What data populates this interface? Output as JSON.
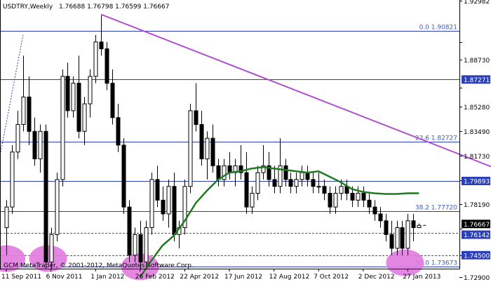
{
  "header": {
    "symbol": "USDTRY,Weekly",
    "ohlc": "1.76688 1.76798 1.76599 1.76667"
  },
  "footer": {
    "copyright": "GCM MetaTrader, © 2001-2012, MetaQuotes Software Corp."
  },
  "colors": {
    "bullish": "#ffffff",
    "bearish": "#000000",
    "level_line": "#2b3fb8",
    "trendline": "#b050d0",
    "moving_average": "#1f7a1f",
    "ellipse": "#e07ae0",
    "badge_bg": "#2b3fb8"
  },
  "chart_data": {
    "type": "candlestick",
    "price_axis": {
      "ylim": [
        1.7255,
        1.9305
      ],
      "ticks": [
        1.92982,
        1.9,
        1.8873,
        1.867,
        1.8528,
        1.8349,
        1.8173,
        1.7996,
        1.7819,
        1.7643,
        1.745,
        1.729
      ],
      "labels": [
        "1.92982",
        "",
        "1.88730",
        "",
        "1.85280",
        "1.83490",
        "1.81730",
        "",
        "1.78190",
        "",
        "",
        "1.72900"
      ]
    },
    "time_axis": {
      "labels": [
        "11 Sep 2011",
        "6 Nov 2011",
        "1 Jan 2012",
        "26 Feb 2012",
        "22 Apr 2012",
        "17 Jun 2012",
        "12 Aug 2012",
        "7 Oct 2012",
        "2 Dec 2012",
        "27 Jan 2013"
      ],
      "label_bar_index": [
        0,
        8,
        16,
        24,
        32,
        40,
        48,
        56,
        64,
        72
      ]
    },
    "candles": [
      [
        1.765,
        1.785,
        1.745,
        1.78
      ],
      [
        1.78,
        1.825,
        1.775,
        1.82
      ],
      [
        1.82,
        1.85,
        1.815,
        1.84
      ],
      [
        1.84,
        1.89,
        1.835,
        1.86
      ],
      [
        1.86,
        1.875,
        1.825,
        1.835
      ],
      [
        1.835,
        1.845,
        1.81,
        1.815
      ],
      [
        1.815,
        1.84,
        1.805,
        1.835
      ],
      [
        1.835,
        1.84,
        1.735,
        1.74
      ],
      [
        1.74,
        1.765,
        1.735,
        1.76
      ],
      [
        1.76,
        1.805,
        1.755,
        1.8
      ],
      [
        1.8,
        1.88,
        1.795,
        1.875
      ],
      [
        1.875,
        1.885,
        1.845,
        1.85
      ],
      [
        1.85,
        1.875,
        1.845,
        1.87
      ],
      [
        1.87,
        1.89,
        1.83,
        1.835
      ],
      [
        1.835,
        1.86,
        1.825,
        1.855
      ],
      [
        1.855,
        1.88,
        1.845,
        1.875
      ],
      [
        1.875,
        1.905,
        1.87,
        1.9
      ],
      [
        1.9,
        1.92,
        1.89,
        1.895
      ],
      [
        1.895,
        1.9,
        1.865,
        1.87
      ],
      [
        1.87,
        1.88,
        1.84,
        1.845
      ],
      [
        1.845,
        1.855,
        1.82,
        1.825
      ],
      [
        1.825,
        1.83,
        1.775,
        1.78
      ],
      [
        1.78,
        1.785,
        1.74,
        1.745
      ],
      [
        1.745,
        1.765,
        1.74,
        1.76
      ],
      [
        1.76,
        1.77,
        1.735,
        1.74
      ],
      [
        1.74,
        1.77,
        1.735,
        1.765
      ],
      [
        1.765,
        1.805,
        1.76,
        1.8
      ],
      [
        1.8,
        1.81,
        1.78,
        1.785
      ],
      [
        1.785,
        1.795,
        1.77,
        1.775
      ],
      [
        1.775,
        1.8,
        1.765,
        1.795
      ],
      [
        1.795,
        1.805,
        1.755,
        1.76
      ],
      [
        1.76,
        1.77,
        1.75,
        1.765
      ],
      [
        1.765,
        1.8,
        1.76,
        1.795
      ],
      [
        1.795,
        1.855,
        1.79,
        1.85
      ],
      [
        1.85,
        1.87,
        1.835,
        1.84
      ],
      [
        1.84,
        1.85,
        1.81,
        1.815
      ],
      [
        1.815,
        1.835,
        1.8,
        1.83
      ],
      [
        1.83,
        1.84,
        1.805,
        1.81
      ],
      [
        1.81,
        1.815,
        1.795,
        1.8
      ],
      [
        1.8,
        1.815,
        1.795,
        1.81
      ],
      [
        1.81,
        1.82,
        1.8,
        1.805
      ],
      [
        1.805,
        1.815,
        1.795,
        1.81
      ],
      [
        1.81,
        1.825,
        1.8,
        1.805
      ],
      [
        1.805,
        1.82,
        1.775,
        1.78
      ],
      [
        1.78,
        1.795,
        1.775,
        1.79
      ],
      [
        1.79,
        1.81,
        1.785,
        1.805
      ],
      [
        1.805,
        1.825,
        1.8,
        1.81
      ],
      [
        1.81,
        1.82,
        1.795,
        1.8
      ],
      [
        1.8,
        1.81,
        1.79,
        1.795
      ],
      [
        1.795,
        1.83,
        1.79,
        1.81
      ],
      [
        1.81,
        1.815,
        1.795,
        1.8
      ],
      [
        1.8,
        1.805,
        1.79,
        1.795
      ],
      [
        1.795,
        1.805,
        1.79,
        1.8
      ],
      [
        1.8,
        1.81,
        1.795,
        1.805
      ],
      [
        1.805,
        1.81,
        1.795,
        1.8
      ],
      [
        1.8,
        1.805,
        1.79,
        1.795
      ],
      [
        1.795,
        1.805,
        1.79,
        1.795
      ],
      [
        1.795,
        1.8,
        1.785,
        1.79
      ],
      [
        1.79,
        1.795,
        1.775,
        1.78
      ],
      [
        1.78,
        1.795,
        1.775,
        1.79
      ],
      [
        1.79,
        1.8,
        1.785,
        1.795
      ],
      [
        1.795,
        1.8,
        1.785,
        1.79
      ],
      [
        1.79,
        1.795,
        1.78,
        1.785
      ],
      [
        1.785,
        1.795,
        1.78,
        1.79
      ],
      [
        1.79,
        1.795,
        1.78,
        1.785
      ],
      [
        1.785,
        1.79,
        1.775,
        1.78
      ],
      [
        1.78,
        1.785,
        1.77,
        1.775
      ],
      [
        1.775,
        1.78,
        1.765,
        1.77
      ],
      [
        1.77,
        1.775,
        1.755,
        1.76
      ],
      [
        1.76,
        1.77,
        1.745,
        1.75
      ],
      [
        1.75,
        1.77,
        1.745,
        1.765
      ],
      [
        1.765,
        1.77,
        1.745,
        1.75
      ],
      [
        1.75,
        1.775,
        1.745,
        1.77
      ],
      [
        1.77,
        1.775,
        1.755,
        1.765
      ],
      [
        1.765,
        1.768,
        1.765,
        1.7667
      ]
    ],
    "moving_average": {
      "type": "line",
      "points": [
        [
          24,
          1.729
        ],
        [
          26,
          1.741
        ],
        [
          28,
          1.752
        ],
        [
          30,
          1.759
        ],
        [
          32,
          1.77
        ],
        [
          34,
          1.783
        ],
        [
          36,
          1.792
        ],
        [
          38,
          1.8
        ],
        [
          40,
          1.805
        ],
        [
          42,
          1.806
        ],
        [
          44,
          1.808
        ],
        [
          46,
          1.809
        ],
        [
          48,
          1.808
        ],
        [
          50,
          1.807
        ],
        [
          52,
          1.806
        ],
        [
          54,
          1.805
        ],
        [
          56,
          1.806
        ],
        [
          58,
          1.802
        ],
        [
          60,
          1.798
        ],
        [
          62,
          1.793
        ],
        [
          64,
          1.791
        ],
        [
          66,
          1.79
        ],
        [
          68,
          1.7895
        ],
        [
          70,
          1.7895
        ],
        [
          72,
          1.79
        ],
        [
          74,
          1.79
        ]
      ]
    },
    "trendline": {
      "from": [
        17,
        1.92
      ],
      "to": [
        103,
        1.784
      ]
    },
    "dotted_segment": {
      "from": [
        -1,
        1.82
      ],
      "to": [
        3,
        1.905
      ]
    },
    "levels": [
      {
        "value": 1.90821,
        "label": "0.0 1.90821",
        "badge": false,
        "dashed": false
      },
      {
        "value": 1.87271,
        "label": "",
        "badge": true,
        "dashed": false
      },
      {
        "value": 1.82727,
        "label": "23.6 1.82727",
        "badge": false,
        "dashed": false
      },
      {
        "value": 1.79893,
        "label": "",
        "badge": true,
        "dashed": false
      },
      {
        "value": 1.7772,
        "label": "38.2 1.77720",
        "badge": false,
        "dashed": false
      },
      {
        "value": 1.76142,
        "label": "",
        "badge": true,
        "dashed": true
      },
      {
        "value": 1.745,
        "label": "",
        "badge": true,
        "dashed": true
      },
      {
        "value": 1.73673,
        "label": "50.0 1.73673",
        "badge": false,
        "dashed": false
      }
    ],
    "price_badges": [
      "1.87271",
      "1.79893",
      "1.76667",
      "1.76142",
      "1.74500"
    ],
    "current_price": 1.76667,
    "ellipses": [
      {
        "bar": 0,
        "price": 1.7425
      },
      {
        "bar": 7.5,
        "price": 1.7425
      },
      {
        "bar": 24,
        "price": 1.7365
      },
      {
        "bar": 71.5,
        "price": 1.7395
      }
    ]
  }
}
